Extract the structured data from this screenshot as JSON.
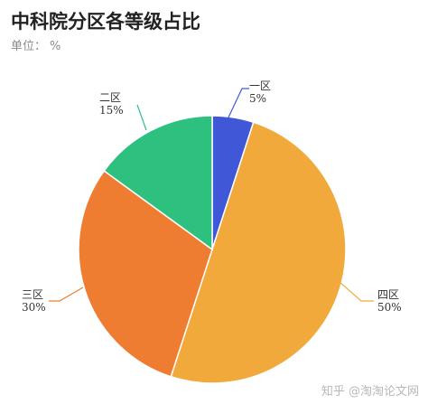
{
  "title": "中科院分区各等级占比",
  "unit_label": "单位：",
  "unit_value": "%",
  "watermark": "知乎 @淘淘论文网",
  "chart_data": {
    "type": "pie",
    "title": "中科院分区各等级占比",
    "subtitle": "单位：%",
    "start": "12 o'clock",
    "direction": "clockwise",
    "slices": [
      {
        "label": "一区",
        "value": 5,
        "value_text": "5%",
        "color": "#4058d8"
      },
      {
        "label": "四区",
        "value": 50,
        "value_text": "50%",
        "color": "#f0a93a"
      },
      {
        "label": "三区",
        "value": 30,
        "value_text": "30%",
        "color": "#ee7d31"
      },
      {
        "label": "二区",
        "value": 15,
        "value_text": "15%",
        "color": "#2ec07f"
      }
    ]
  }
}
